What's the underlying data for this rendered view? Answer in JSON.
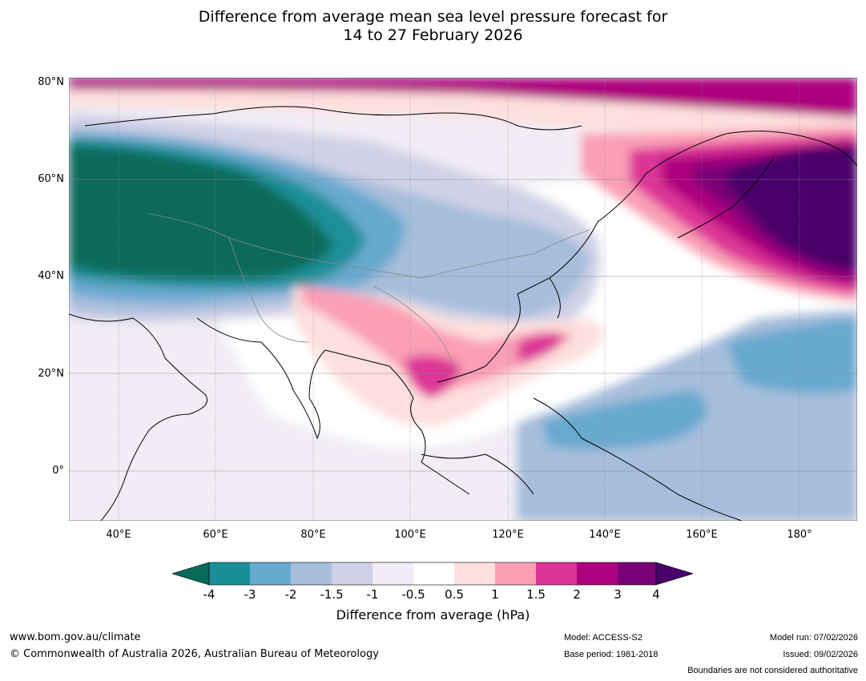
{
  "title": {
    "line1": "Difference from average mean sea level pressure forecast for",
    "line2": "14 to 27 February 2026"
  },
  "map": {
    "lat_labels": [
      "80°N",
      "60°N",
      "40°N",
      "20°N",
      "0°"
    ],
    "lon_labels": [
      "40°E",
      "60°E",
      "80°E",
      "100°E",
      "120°E",
      "140°E",
      "160°E",
      "180°"
    ]
  },
  "colorbar": {
    "ticks": [
      "-4",
      "-3",
      "-2",
      "-1.5",
      "-1",
      "-0.5",
      "0.5",
      "1",
      "1.5",
      "2",
      "3",
      "4"
    ],
    "colors": [
      "#076a5a",
      "#1a8f98",
      "#67a9cf",
      "#a6bddb",
      "#d0d1e6",
      "#f1ecf5",
      "#ffffff",
      "#fde0dd",
      "#fa9fb5",
      "#dd3497",
      "#ae017e",
      "#7a0177",
      "#49006a"
    ],
    "label": "Difference from average (hPa)"
  },
  "footer": {
    "url": "www.bom.gov.au/climate",
    "copyright": "© Commonwealth of Australia 2026, Australian Bureau of Meteorology",
    "model": "Model: ACCESS-S2",
    "base_period": "Base period: 1981-2018",
    "model_run": "Model run: 07/02/2026",
    "issued": "Issued: 09/02/2026",
    "disclaimer": "Boundaries are not considered authoritative"
  }
}
